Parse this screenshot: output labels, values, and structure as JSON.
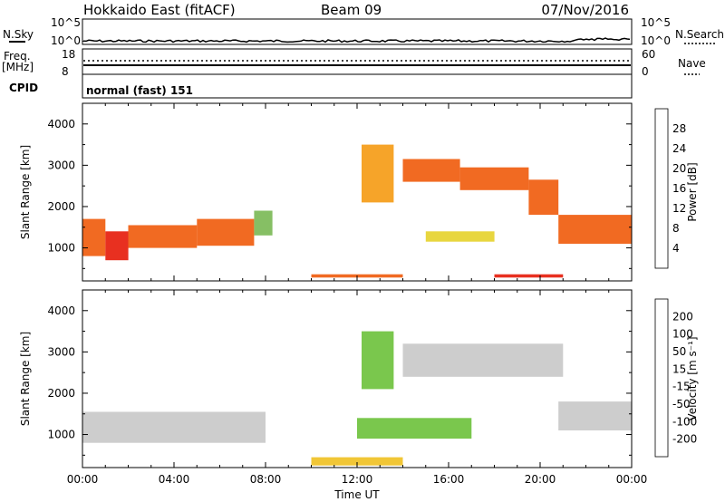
{
  "header": {
    "station": "Hokkaido East (fitACF)",
    "beam": "Beam 09",
    "date": "07/Nov/2016"
  },
  "strip_labels": {
    "nsky": "N.Sky",
    "nsearch": "N.Search",
    "freq": "Freq.",
    "freq_unit": "[MHz]",
    "nave": "Nave",
    "cpid": "CPID",
    "cpid_value": "normal (fast) 151"
  },
  "strip_ticks": {
    "noise_left": [
      "10^5",
      "10^0"
    ],
    "noise_right": [
      "10^5",
      "10^0"
    ],
    "freq_left": [
      "18",
      "8"
    ],
    "freq_right": [
      "60",
      "0"
    ]
  },
  "chart_data": [
    {
      "type": "heatmap",
      "name": "power",
      "ylabel": "Slant Range [km]",
      "ylim": [
        200,
        4500
      ],
      "yticks": [
        "1000",
        "2000",
        "3000",
        "4000"
      ],
      "colorbar": {
        "label": "Power [dB]",
        "ticks": [
          "4",
          "8",
          "12",
          "16",
          "20",
          "24",
          "28"
        ],
        "colors": [
          "#0016f0",
          "#3e5a9a",
          "#4f8c75",
          "#79b853",
          "#e6d12a",
          "#f59a12",
          "#f05a0a",
          "#e61a08"
        ]
      },
      "bands": [
        {
          "t0": 0.0,
          "t1": 1.0,
          "r0": 800,
          "r1": 1700,
          "level": 6
        },
        {
          "t0": 1.0,
          "t1": 2.0,
          "r0": 700,
          "r1": 1400,
          "level": 7
        },
        {
          "t0": 2.0,
          "t1": 5.0,
          "r0": 1000,
          "r1": 1550,
          "level": 6
        },
        {
          "t0": 5.0,
          "t1": 7.5,
          "r0": 1050,
          "r1": 1700,
          "level": 6
        },
        {
          "t0": 7.5,
          "t1": 8.3,
          "r0": 1300,
          "r1": 1900,
          "level": 3
        },
        {
          "t0": 12.2,
          "t1": 13.6,
          "r0": 2100,
          "r1": 3500,
          "level": 5
        },
        {
          "t0": 14.0,
          "t1": 16.5,
          "r0": 2600,
          "r1": 3150,
          "level": 6
        },
        {
          "t0": 16.5,
          "t1": 19.5,
          "r0": 2400,
          "r1": 2950,
          "level": 6
        },
        {
          "t0": 19.5,
          "t1": 20.8,
          "r0": 1800,
          "r1": 2650,
          "level": 6
        },
        {
          "t0": 20.8,
          "t1": 24.0,
          "r0": 1100,
          "r1": 1800,
          "level": 6
        },
        {
          "t0": 15.0,
          "t1": 18.0,
          "r0": 1150,
          "r1": 1400,
          "level": 4
        },
        {
          "t0": 10.0,
          "t1": 14.0,
          "r0": 280,
          "r1": 360,
          "level": 6
        },
        {
          "t0": 18.0,
          "t1": 21.0,
          "r0": 280,
          "r1": 360,
          "level": 7
        }
      ]
    },
    {
      "type": "heatmap",
      "name": "velocity",
      "xlabel": "Time UT",
      "ylabel": "Slant Range [km]",
      "ylim": [
        200,
        4500
      ],
      "xlim": [
        0,
        24
      ],
      "xticks": [
        "00:00",
        "04:00",
        "08:00",
        "12:00",
        "16:00",
        "20:00",
        "00:00"
      ],
      "yticks": [
        "1000",
        "2000",
        "3000",
        "4000"
      ],
      "colorbar": {
        "label": "Velocity [m s⁻¹]",
        "ticks": [
          "200",
          "100",
          "50",
          "15",
          "-15",
          "-50",
          "-100",
          "-200"
        ],
        "colors": [
          "#1a2ad8",
          "#4a5ea8",
          "#3f8a4e",
          "#6cc13a",
          "#c8c8c8",
          "#f0c020",
          "#f58a10",
          "#f04a0a",
          "#e01010"
        ]
      },
      "bands": [
        {
          "t0": 0.0,
          "t1": 8.0,
          "r0": 800,
          "r1": 1550,
          "level": 4
        },
        {
          "t0": 12.2,
          "t1": 13.6,
          "r0": 2100,
          "r1": 3500,
          "level": 3
        },
        {
          "t0": 14.0,
          "t1": 21.0,
          "r0": 2400,
          "r1": 3200,
          "level": 4
        },
        {
          "t0": 20.8,
          "t1": 24.0,
          "r0": 1100,
          "r1": 1800,
          "level": 4
        },
        {
          "t0": 12.0,
          "t1": 17.0,
          "r0": 900,
          "r1": 1400,
          "level": 3
        },
        {
          "t0": 10.0,
          "t1": 14.0,
          "r0": 250,
          "r1": 450,
          "level": 5
        }
      ]
    }
  ]
}
